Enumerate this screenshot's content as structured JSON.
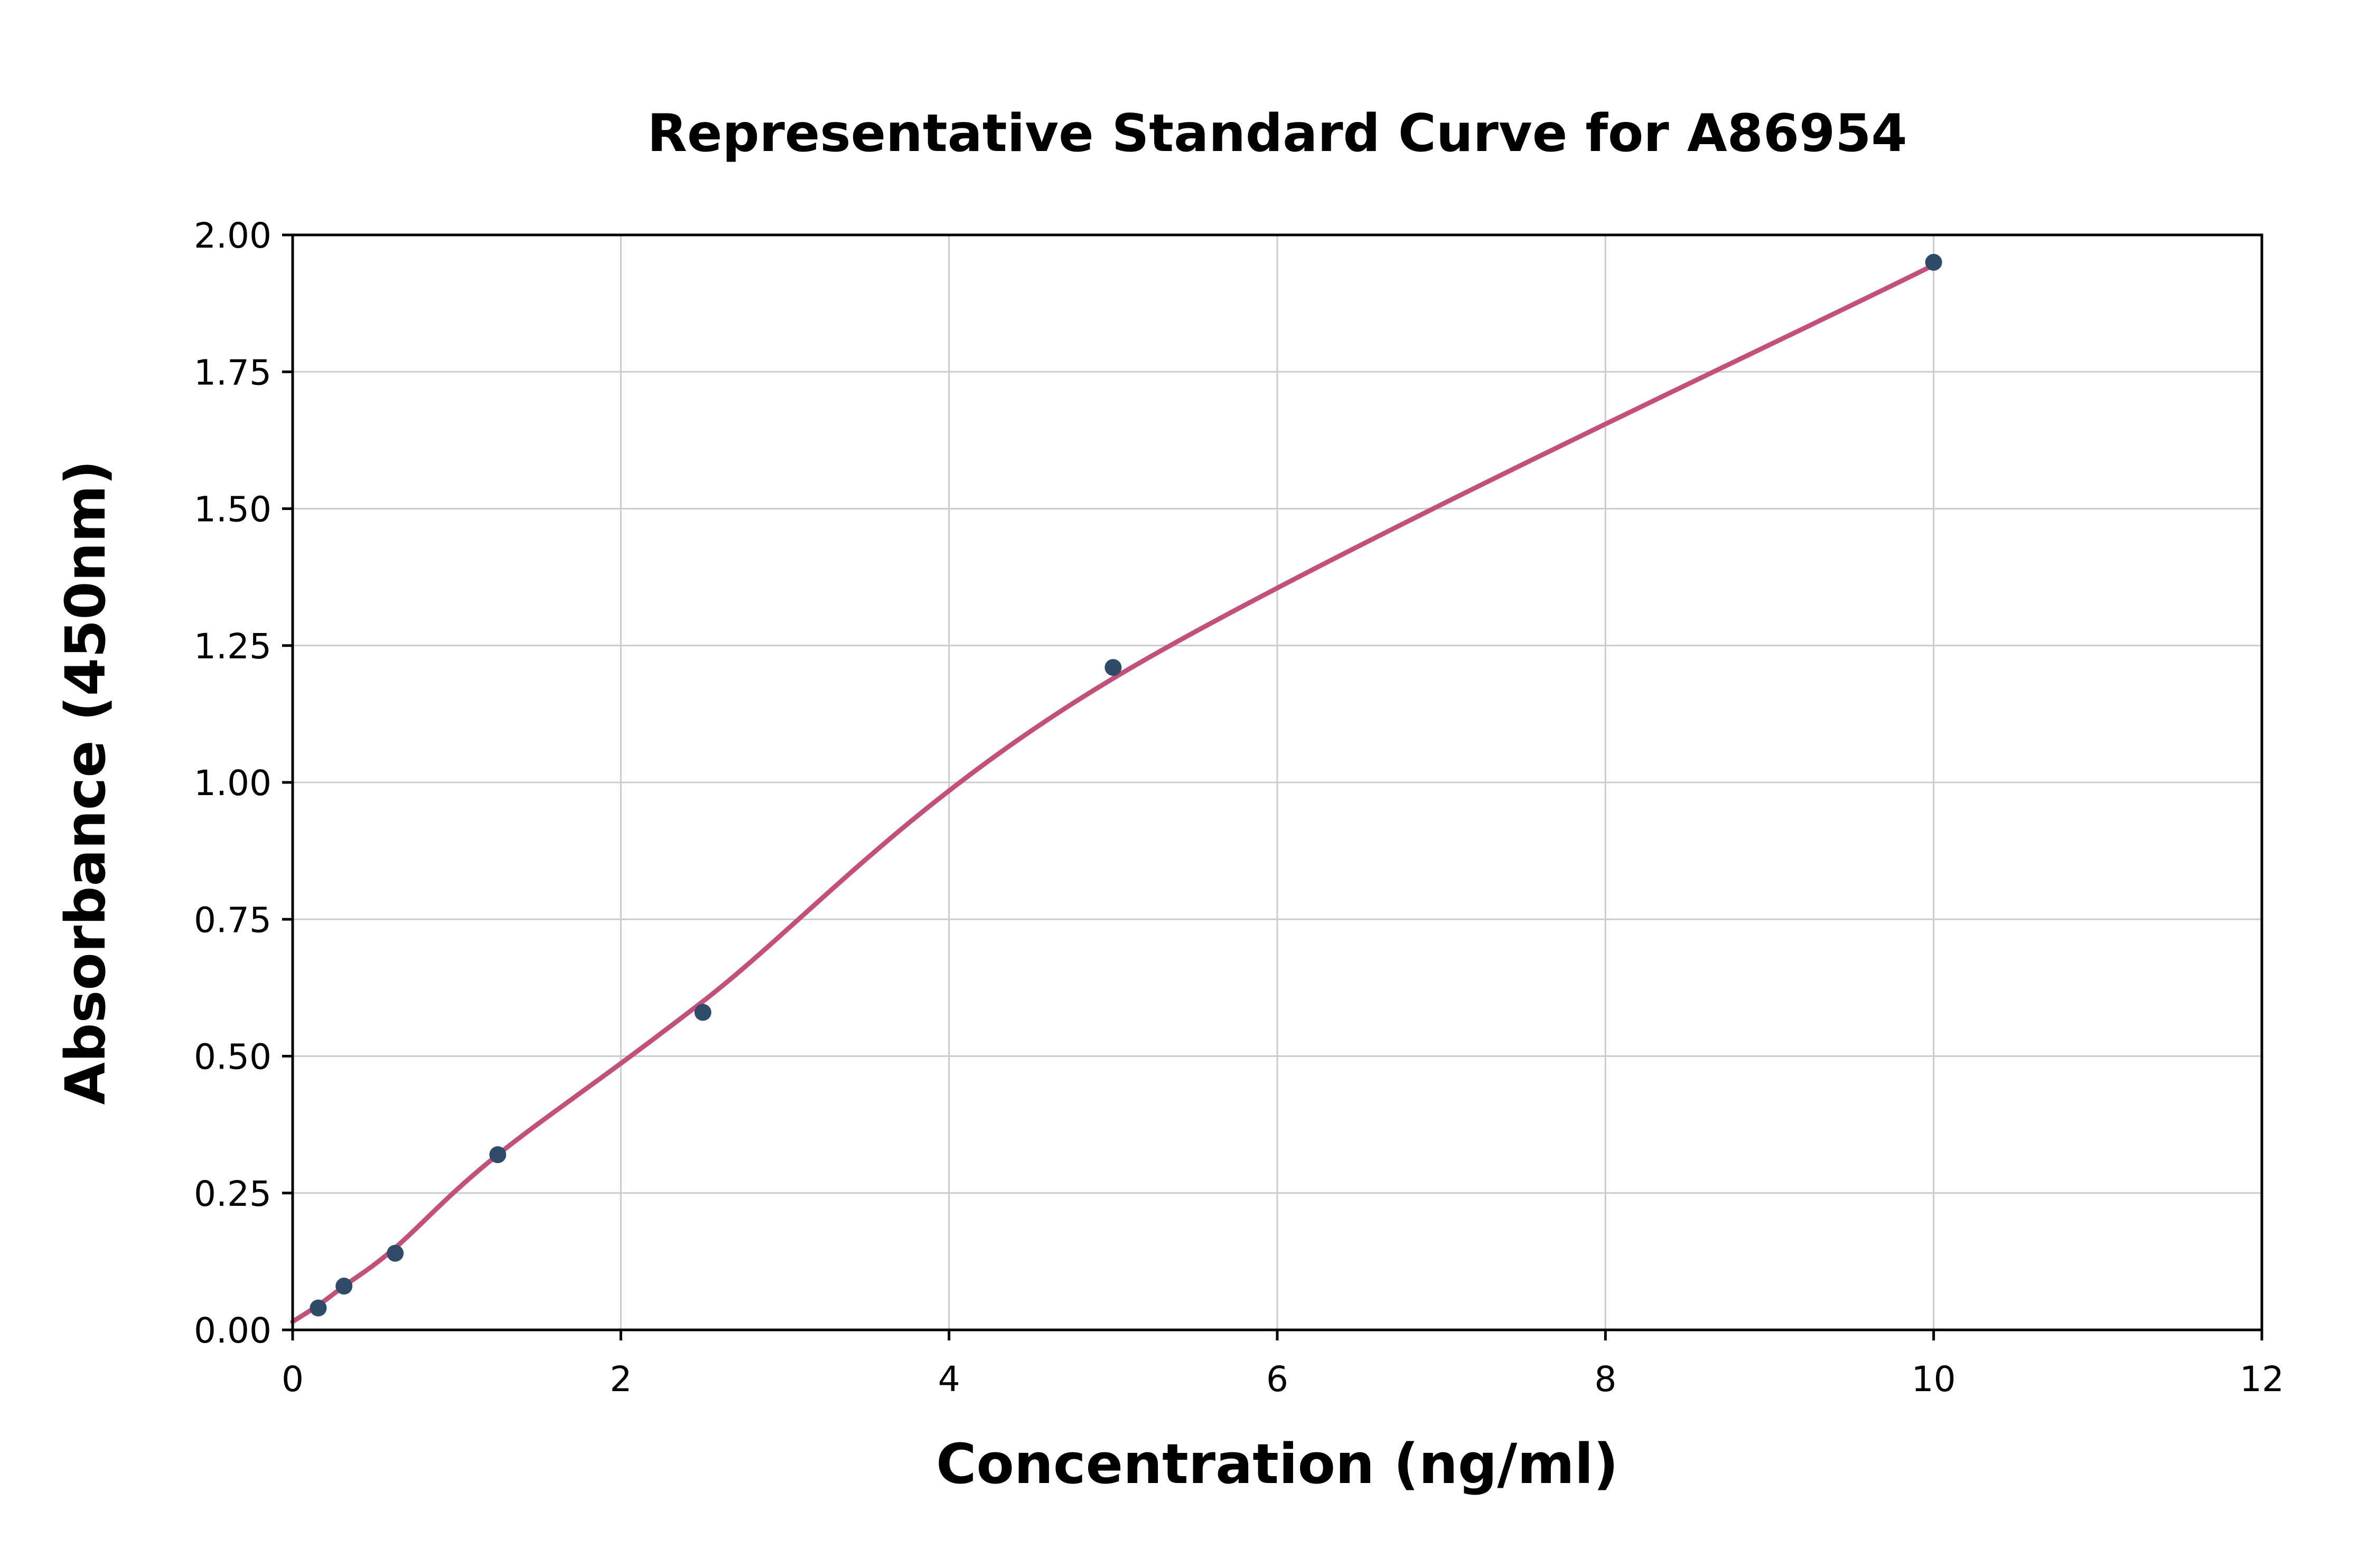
{
  "chart_data": {
    "type": "scatter",
    "title": "Representative Standard Curve for A86954",
    "xlabel": "Concentration (ng/ml)",
    "ylabel": "Absorbance (450nm)",
    "xlim": [
      0,
      12
    ],
    "ylim": [
      0,
      2
    ],
    "xticks": [
      0,
      2,
      4,
      6,
      8,
      10,
      12
    ],
    "xtick_labels": [
      "0",
      "2",
      "4",
      "6",
      "8",
      "10",
      "12"
    ],
    "yticks": [
      0,
      0.25,
      0.5,
      0.75,
      1,
      1.25,
      1.5,
      1.75,
      2
    ],
    "ytick_labels": [
      "0.00",
      "0.25",
      "0.50",
      "0.75",
      "1.00",
      "1.25",
      "1.50",
      "1.75",
      "2.00"
    ],
    "grid": true,
    "legend_position": "none",
    "points": {
      "x": [
        0.156,
        0.313,
        0.625,
        1.25,
        2.5,
        5,
        10
      ],
      "y": [
        0.04,
        0.08,
        0.14,
        0.32,
        0.58,
        1.21,
        1.95
      ]
    },
    "fit_curve": {
      "x": [
        0,
        0.156,
        0.313,
        0.625,
        1.25,
        2.5,
        5,
        10
      ],
      "y": [
        0.015,
        0.045,
        0.08,
        0.15,
        0.32,
        0.6,
        1.19,
        1.945
      ]
    },
    "colors": {
      "point": "#2f4b68",
      "line": "#c2507a",
      "grid": "#cccccc",
      "spine": "#000000",
      "background": "#ffffff",
      "text": "#000000"
    }
  }
}
